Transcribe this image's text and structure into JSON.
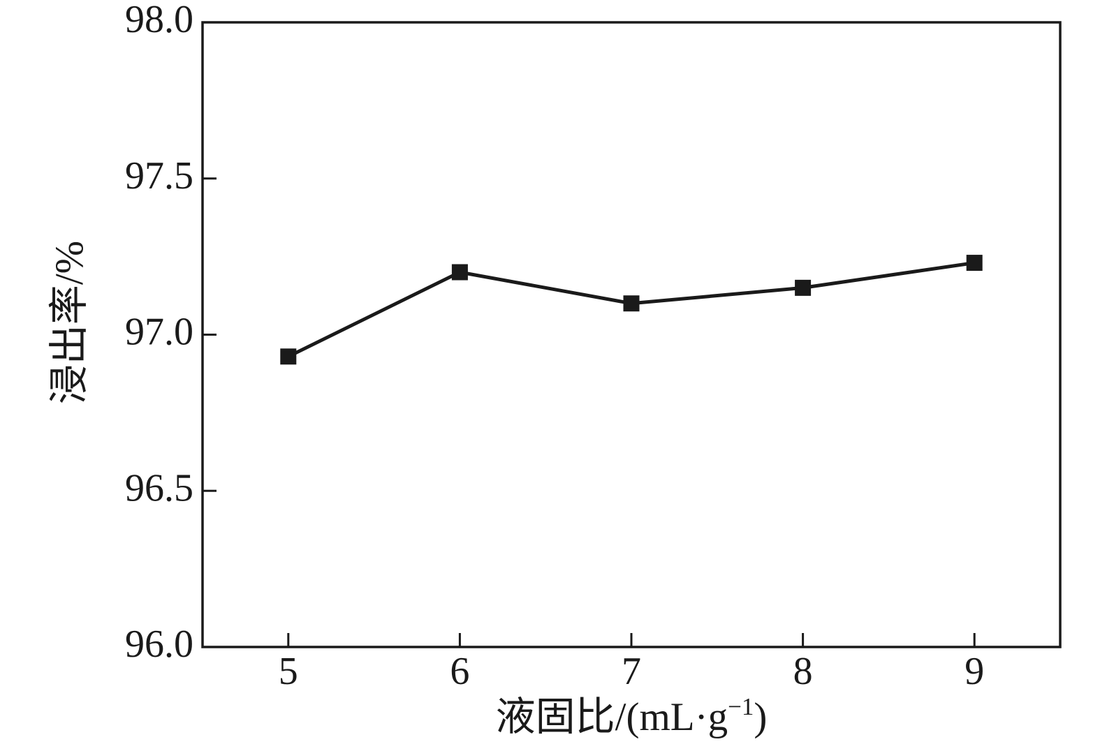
{
  "chart_data": {
    "type": "line",
    "title": "",
    "xlabel": "液固比/(mL·g−1)",
    "xlabel_parts": {
      "main": "液固比/(mL·g",
      "superscript": "−1",
      "suffix": ")"
    },
    "ylabel": "浸出率/%",
    "x": [
      5,
      6,
      7,
      8,
      9
    ],
    "series": [
      {
        "name": "浸出率",
        "values": [
          96.93,
          97.2,
          97.1,
          97.15,
          97.23
        ]
      }
    ],
    "xlim": [
      4.5,
      9.5
    ],
    "ylim": [
      96.0,
      98.0
    ],
    "x_tick_values": [
      5,
      6,
      7,
      8,
      9
    ],
    "x_tick_labels": [
      "5",
      "6",
      "7",
      "8",
      "9"
    ],
    "y_tick_values": [
      96.0,
      96.5,
      97.0,
      97.5,
      98.0
    ],
    "y_tick_labels": [
      "96.0",
      "96.5",
      "97.0",
      "97.5",
      "98.0"
    ],
    "grid": false,
    "legend_position": "none",
    "marker": "square",
    "colors": {
      "line": "#1a1a1a",
      "marker": "#1a1a1a",
      "axis": "#1a1a1a",
      "text": "#1a1a1a",
      "background": "#ffffff"
    }
  }
}
